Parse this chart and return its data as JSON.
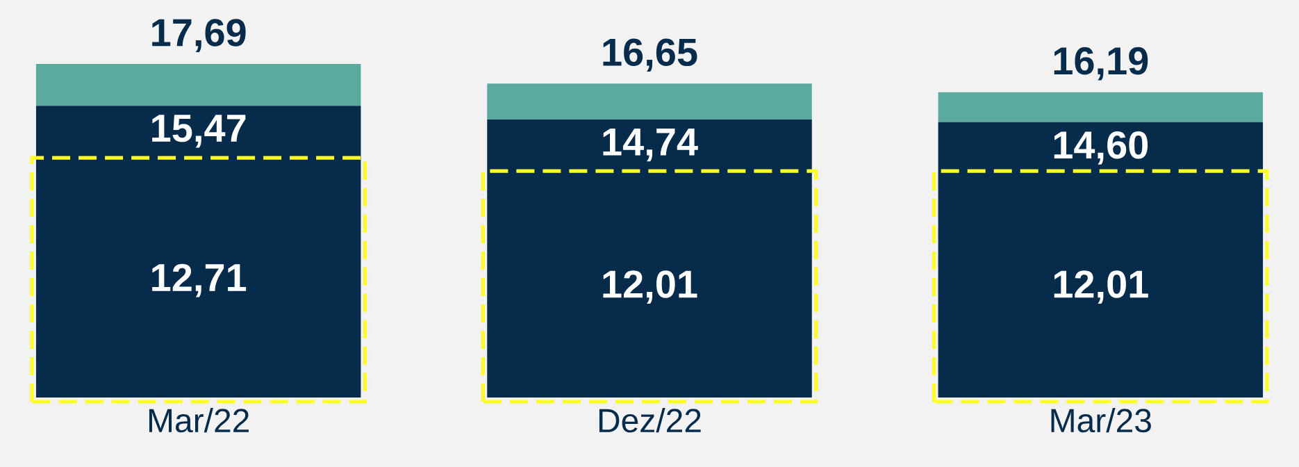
{
  "chart_data": {
    "type": "bar",
    "stacked": true,
    "categories": [
      "Mar/22",
      "Dez/22",
      "Mar/23"
    ],
    "series": [
      {
        "color": "#062b4b",
        "values": [
          12.71,
          12.01,
          12.01
        ],
        "value_labels": [
          "12,71",
          "12,01",
          "12,01"
        ]
      },
      {
        "color": "#062b4b",
        "values": [
          2.76,
          2.73,
          2.59
        ]
      },
      {
        "color": "#5baa9e",
        "values": [
          2.22,
          1.91,
          1.59
        ]
      }
    ],
    "totals": [
      "17,69",
      "16,65",
      "16,19"
    ],
    "annotations": [
      {
        "text": "15,47",
        "x": "Mar/22",
        "y": 15.47
      },
      {
        "text": "14,74",
        "x": "Dez/22",
        "y": 14.74
      },
      {
        "text": "14,60",
        "x": "Mar/23",
        "y": 14.6
      }
    ]
  }
}
